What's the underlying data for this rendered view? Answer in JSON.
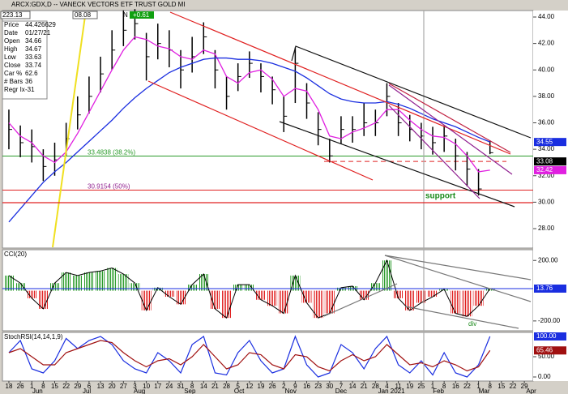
{
  "toolbar": {
    "box1": "223.13",
    "box2": "08.08",
    "flag": "N",
    "change": "+0.61"
  },
  "info": [
    {
      "label": "Price",
      "value": "44.426629"
    },
    {
      "label": "Date",
      "value": "01/27/21"
    },
    {
      "label": "Open",
      "value": "34.66"
    },
    {
      "label": "High",
      "value": "34.67"
    },
    {
      "label": "Low",
      "value": "33.63"
    },
    {
      "label": "Close",
      "value": "33.74"
    },
    {
      "label": "Car %",
      "value": "62.6"
    },
    {
      "label": "# Bars",
      "value": "36"
    },
    {
      "label": "Regr Ix",
      "value": "-31"
    }
  ],
  "chart_data": [
    {
      "type": "ohlc",
      "title": "ARCX:GDX,D -- VANECK VECTORS ETF TRUST GOLD MI",
      "xlim": [
        -0.5634,
        45.77
      ],
      "ylim": [
        26.53,
        44.49
      ],
      "yticks": [
        {
          "value": 44,
          "label": "44.00"
        },
        {
          "value": 42,
          "label": "42.00"
        },
        {
          "value": 40,
          "label": "40.00"
        },
        {
          "value": 38,
          "label": "38.00"
        },
        {
          "value": 36,
          "label": "36.00"
        },
        {
          "value": 34,
          "label": "34.00"
        },
        {
          "value": 32,
          "label": "32.00"
        },
        {
          "value": 30,
          "label": "30.00"
        },
        {
          "value": 28,
          "label": "28.00"
        }
      ],
      "x": [
        0,
        1,
        2,
        3,
        4,
        5,
        6,
        7,
        8,
        9,
        10,
        11,
        12,
        13,
        14,
        15,
        16,
        17,
        18,
        19,
        20,
        21,
        22,
        23,
        24,
        25,
        26,
        27,
        28,
        29,
        30,
        31,
        32,
        33,
        34,
        35,
        36,
        37,
        38,
        39,
        40,
        41,
        42
      ],
      "high": [
        37,
        35.8,
        35.5,
        34,
        34.5,
        36,
        38,
        39.5,
        41,
        43,
        44.5,
        44.6,
        42.8,
        43.5,
        43,
        41.5,
        42.5,
        43.6,
        41.5,
        39.5,
        40.5,
        41.4,
        40.5,
        39.5,
        38,
        41.7,
        39,
        36.8,
        34.8,
        36.5,
        36.5,
        37.5,
        37,
        39,
        37.5,
        36.6,
        36,
        35.7,
        35.8,
        34.8,
        33.8,
        32.5,
        34.67
      ],
      "low": [
        34,
        33.4,
        33,
        31.6,
        32,
        33.5,
        35.5,
        36.7,
        38.3,
        40,
        41.8,
        42.3,
        39.2,
        40.8,
        40.2,
        38.6,
        39.8,
        41.2,
        38.6,
        37,
        38.4,
        39.4,
        38.3,
        37.4,
        35.3,
        37.5,
        36.3,
        34.3,
        33,
        34.4,
        34.5,
        35,
        35,
        36.5,
        35,
        34.6,
        34,
        33.6,
        33.8,
        32.4,
        31.2,
        30.5,
        33.63
      ],
      "close": [
        35.5,
        34.5,
        34.2,
        32.7,
        33.2,
        34.8,
        36.6,
        38,
        39.7,
        41.5,
        43,
        43.5,
        41,
        42,
        41.5,
        40,
        41,
        42.5,
        40,
        38,
        39.5,
        40.5,
        39.5,
        38.5,
        36.5,
        40.5,
        37.5,
        35.5,
        33.5,
        35.5,
        35.5,
        36,
        36,
        38,
        36,
        35.5,
        35,
        34.5,
        35,
        33.5,
        32.5,
        31,
        33.74
      ],
      "series": [
        {
          "color": "#e020e0",
          "values": [
            36,
            35,
            34.5,
            33.5,
            33,
            33.8,
            35.2,
            36.8,
            38.4,
            40,
            41.5,
            42.5,
            42.3,
            41.8,
            41.6,
            41,
            40.8,
            41.5,
            41.2,
            39.5,
            39,
            39.8,
            40,
            39.3,
            38,
            38.6,
            38.4,
            37,
            35,
            34.8,
            35.3,
            35.6,
            36,
            37,
            37,
            36.2,
            35.5,
            35,
            34.9,
            34.4,
            33.5,
            32.3,
            32.42
          ]
        },
        {
          "color": "#1a2ee0",
          "values": [
            28.5,
            29.5,
            30.5,
            31.5,
            32.3,
            33,
            33.8,
            34.6,
            35.4,
            36.2,
            37.1,
            37.9,
            38.6,
            39.2,
            39.8,
            40.2,
            40.5,
            40.8,
            40.9,
            40.9,
            40.8,
            40.8,
            40.7,
            40.5,
            40.2,
            39.9,
            39.4,
            38.8,
            38.2,
            37.8,
            37.6,
            37.5,
            37.5,
            37.6,
            37.4,
            37.1,
            36.7,
            36.3,
            36,
            35.7,
            35.3,
            34.9,
            34.55
          ]
        }
      ],
      "levels": [
        {
          "value": 33.4838,
          "label": "33.4838 (38.2%)",
          "color": "#2a9a2a"
        },
        {
          "value": 30.9154,
          "label": "30.9154 (50%)",
          "color": "#e02020"
        }
      ],
      "dashed_level": 33.08,
      "annotation": "support",
      "xticks": [
        {
          "value": 0,
          "label": "18"
        },
        {
          "value": 1,
          "label": "26"
        },
        {
          "value": 2,
          "label": "1"
        },
        {
          "value": 3,
          "label": "8"
        },
        {
          "value": 4,
          "label": "15"
        },
        {
          "value": 5,
          "label": "22"
        },
        {
          "value": 6,
          "label": "29"
        },
        {
          "value": 7,
          "label": "6"
        },
        {
          "value": 8,
          "label": "13"
        },
        {
          "value": 9,
          "label": "20"
        },
        {
          "value": 10,
          "label": "27"
        },
        {
          "value": 11,
          "label": "3"
        },
        {
          "value": 12,
          "label": "10"
        },
        {
          "value": 13,
          "label": "17"
        },
        {
          "value": 14,
          "label": "24"
        },
        {
          "value": 15,
          "label": "31"
        },
        {
          "value": 16,
          "label": "8"
        },
        {
          "value": 17,
          "label": "14"
        },
        {
          "value": 18,
          "label": "21"
        },
        {
          "value": 19,
          "label": "28"
        },
        {
          "value": 20,
          "label": "5"
        },
        {
          "value": 21,
          "label": "12"
        },
        {
          "value": 22,
          "label": "19"
        },
        {
          "value": 23,
          "label": "26"
        },
        {
          "value": 24,
          "label": "2"
        },
        {
          "value": 25,
          "label": "9"
        },
        {
          "value": 26,
          "label": "16"
        },
        {
          "value": 27,
          "label": "23"
        },
        {
          "value": 28,
          "label": "30"
        },
        {
          "value": 29,
          "label": "7"
        },
        {
          "value": 30,
          "label": "14"
        },
        {
          "value": 31,
          "label": "21"
        },
        {
          "value": 32,
          "label": "28"
        },
        {
          "value": 33,
          "label": "4"
        },
        {
          "value": 34,
          "label": "11"
        },
        {
          "value": 35,
          "label": "19"
        },
        {
          "value": 36,
          "label": "25"
        },
        {
          "value": 37,
          "label": "1"
        },
        {
          "value": 38,
          "label": "8"
        },
        {
          "value": 39,
          "label": "16"
        },
        {
          "value": 40,
          "label": "22"
        },
        {
          "value": 41,
          "label": "1"
        },
        {
          "value": 42,
          "label": "8"
        },
        {
          "value": 43,
          "label": "15"
        },
        {
          "value": 44,
          "label": "22"
        },
        {
          "value": 45,
          "label": "29"
        }
      ],
      "months": [
        {
          "value": 2.5,
          "label": "Jun"
        },
        {
          "value": 6.8,
          "label": "Jul"
        },
        {
          "value": 11.4,
          "label": "Aug"
        },
        {
          "value": 15.8,
          "label": "Sep"
        },
        {
          "value": 20.1,
          "label": "Oct"
        },
        {
          "value": 24.6,
          "label": "Nov"
        },
        {
          "value": 29,
          "label": "Dec"
        },
        {
          "value": 33.4,
          "label": "Jan 2021"
        },
        {
          "value": 37.5,
          "label": "Feb"
        },
        {
          "value": 41.5,
          "label": "Mar"
        },
        {
          "value": 45.6,
          "label": "Apr"
        }
      ]
    },
    {
      "type": "histogram",
      "title": "CCI(20)",
      "ylim": [
        -265,
        271
      ],
      "yticks": [
        {
          "value": 200,
          "label": "200.00"
        },
        {
          "value": -200,
          "label": "-200.00"
        }
      ],
      "values": [
        100,
        50,
        -50,
        -120,
        50,
        120,
        100,
        120,
        130,
        150,
        110,
        50,
        -130,
        20,
        -40,
        -90,
        40,
        110,
        -120,
        -180,
        40,
        40,
        -60,
        -100,
        -150,
        100,
        -80,
        -180,
        -150,
        20,
        30,
        -60,
        50,
        200,
        -50,
        -130,
        -80,
        -40,
        10,
        -150,
        -170,
        -100,
        13.76
      ],
      "annotation": "div"
    },
    {
      "type": "line",
      "title": "StochRSI(14,14,1,9)",
      "ylim": [
        -10,
        110
      ],
      "yticks": [
        {
          "value": 50,
          "label": "50.00"
        },
        {
          "value": 0,
          "label": "0.00"
        }
      ],
      "series": [
        {
          "color": "#1a2ee0",
          "values": [
            60,
            90,
            20,
            10,
            40,
            95,
            70,
            90,
            100,
            80,
            40,
            20,
            10,
            60,
            40,
            10,
            80,
            100,
            10,
            5,
            60,
            90,
            40,
            10,
            20,
            100,
            30,
            0,
            10,
            80,
            60,
            20,
            70,
            100,
            30,
            10,
            40,
            5,
            60,
            10,
            0,
            30,
            100
          ],
          "last_label": "100.00"
        },
        {
          "color": "#a01010",
          "values": [
            60,
            70,
            50,
            30,
            30,
            60,
            70,
            80,
            90,
            85,
            60,
            40,
            25,
            40,
            45,
            30,
            50,
            80,
            50,
            20,
            30,
            60,
            55,
            30,
            20,
            55,
            50,
            25,
            15,
            40,
            55,
            40,
            50,
            80,
            55,
            30,
            35,
            25,
            40,
            30,
            15,
            25,
            65.46
          ]
        }
      ]
    }
  ]
}
